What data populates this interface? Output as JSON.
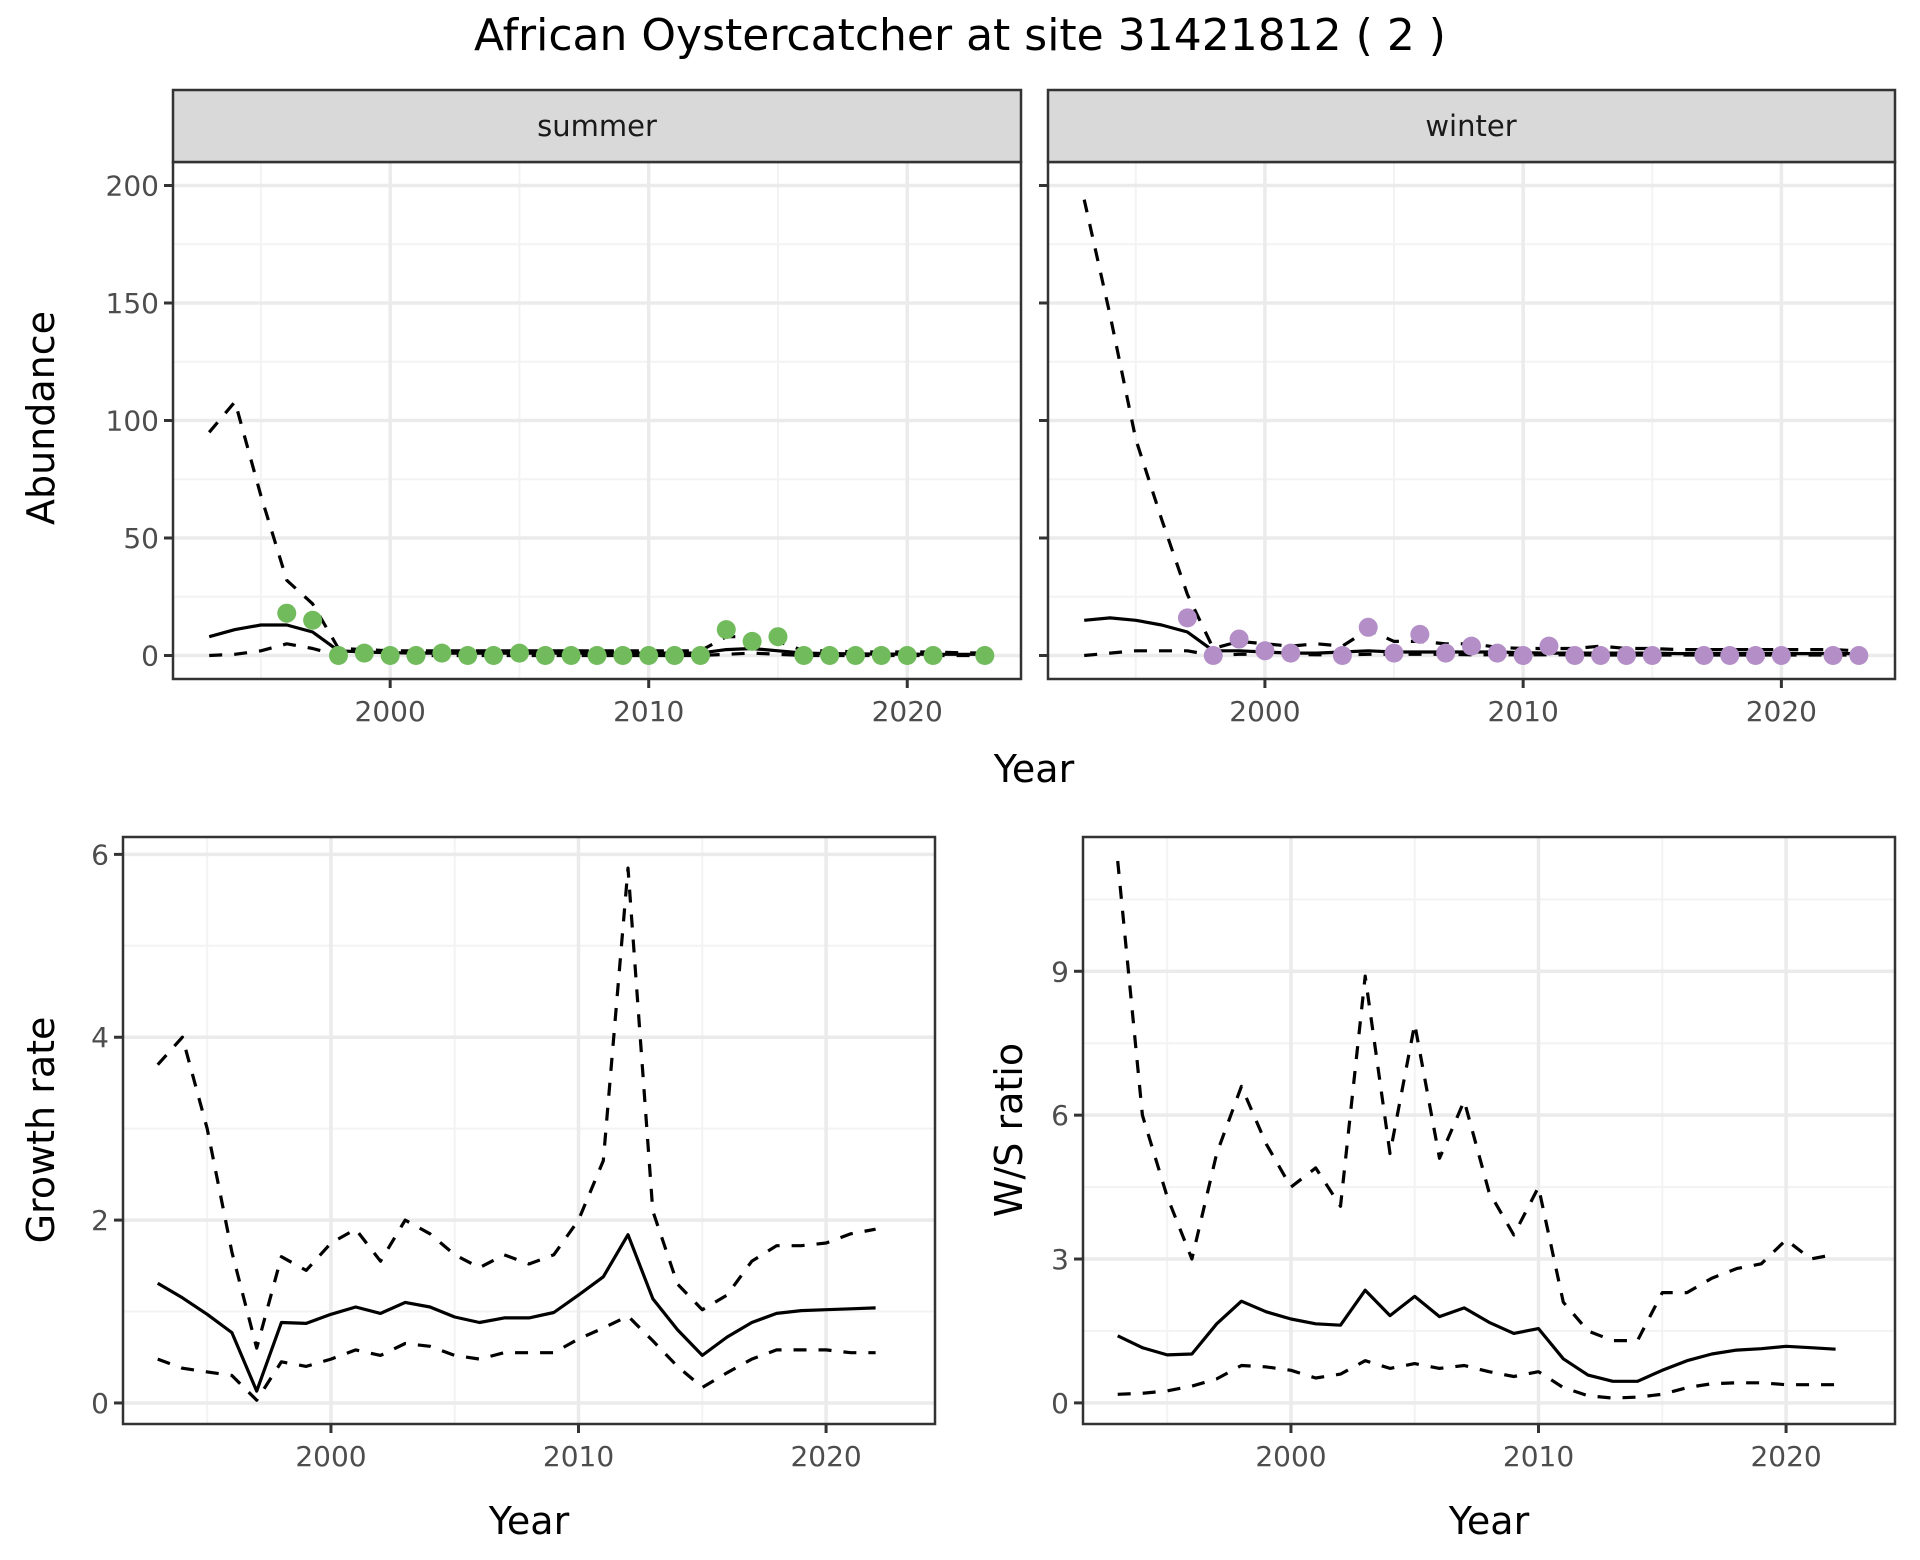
{
  "chart_data": [
    {
      "type": "line",
      "panel": "summer",
      "strip_label": "summer",
      "xlabel": "Year",
      "ylabel": "Abundance",
      "xlim": [
        1991.6,
        2024.4
      ],
      "ylim": [
        -10,
        210
      ],
      "xticks": [
        2000,
        2010,
        2020
      ],
      "yticks": [
        0,
        50,
        100,
        150,
        200
      ],
      "grid": true,
      "points_color": "#71bb5c",
      "x": [
        1993,
        1994,
        1995,
        1996,
        1997,
        1998,
        1999,
        2000,
        2001,
        2002,
        2003,
        2004,
        2005,
        2006,
        2007,
        2008,
        2009,
        2010,
        2011,
        2012,
        2013,
        2014,
        2015,
        2016,
        2017,
        2018,
        2019,
        2020,
        2021,
        2022,
        2023
      ],
      "series": [
        {
          "name": "mean",
          "style": "solid",
          "values": [
            8,
            11,
            13,
            13,
            10,
            2,
            1.5,
            1.2,
            1,
            1,
            1,
            1,
            1,
            1,
            1,
            1,
            1,
            1,
            1,
            1,
            2.5,
            3,
            2,
            1,
            0.8,
            0.7,
            0.6,
            0.6,
            0.5,
            0.5,
            0.5
          ]
        },
        {
          "name": "upper",
          "style": "dashed",
          "values": [
            95,
            108,
            68,
            32,
            22,
            3,
            2.5,
            2,
            2,
            2,
            2,
            2,
            2,
            2,
            2,
            2,
            2,
            2,
            2,
            2,
            8,
            8,
            6,
            2,
            2,
            1.5,
            1.5,
            1.5,
            1.5,
            1.2,
            1
          ]
        },
        {
          "name": "lower",
          "style": "dashed",
          "values": [
            0,
            0.5,
            2,
            5,
            3,
            0,
            0,
            0,
            0,
            0,
            0,
            0,
            0,
            0,
            0,
            0,
            0,
            0,
            0,
            0,
            0.5,
            1,
            0.5,
            0,
            0,
            0,
            0,
            0,
            0,
            0,
            0
          ]
        }
      ],
      "observed": {
        "x": [
          1996,
          1997,
          1998,
          1999,
          2000,
          2001,
          2002,
          2003,
          2004,
          2005,
          2006,
          2007,
          2008,
          2009,
          2010,
          2011,
          2012,
          2013,
          2014,
          2015,
          2016,
          2017,
          2018,
          2019,
          2020,
          2021,
          2023
        ],
        "y": [
          18,
          15,
          0,
          1,
          0,
          0,
          1,
          0,
          0,
          1,
          0,
          0,
          0,
          0,
          0,
          0,
          0,
          11,
          6,
          8,
          0,
          0,
          0,
          0,
          0,
          0,
          0
        ]
      }
    },
    {
      "type": "line",
      "panel": "winter",
      "strip_label": "winter",
      "xlabel": "Year",
      "ylabel": "Abundance",
      "xlim": [
        1991.6,
        2024.4
      ],
      "ylim": [
        -10,
        210
      ],
      "xticks": [
        2000,
        2010,
        2020
      ],
      "yticks": [
        0,
        50,
        100,
        150,
        200
      ],
      "grid": true,
      "points_color": "#b48fc7",
      "x": [
        1993,
        1994,
        1995,
        1996,
        1997,
        1998,
        1999,
        2000,
        2001,
        2002,
        2003,
        2004,
        2005,
        2006,
        2007,
        2008,
        2009,
        2010,
        2011,
        2012,
        2013,
        2014,
        2015,
        2016,
        2017,
        2018,
        2019,
        2020,
        2021,
        2022,
        2023
      ],
      "series": [
        {
          "name": "mean",
          "style": "solid",
          "values": [
            15,
            16,
            15,
            13,
            10,
            2,
            2,
            1.5,
            1,
            1,
            1.5,
            2,
            1.5,
            1.5,
            1.5,
            1.5,
            1.5,
            1.2,
            1,
            1,
            1,
            1,
            1,
            0.8,
            0.8,
            0.8,
            0.8,
            0.8,
            0.8,
            0.8,
            0.8
          ]
        },
        {
          "name": "upper",
          "style": "dashed",
          "values": [
            194,
            145,
            92,
            58,
            26,
            3,
            6,
            5,
            4,
            5,
            4,
            11,
            6,
            6,
            5,
            5,
            3.5,
            3,
            3,
            3,
            4,
            3,
            3,
            2.5,
            2.5,
            2.5,
            2.5,
            2.5,
            2.5,
            2.5,
            2
          ]
        },
        {
          "name": "lower",
          "style": "dashed",
          "values": [
            0,
            1,
            2,
            2,
            2,
            0,
            0.5,
            0.5,
            0.5,
            0.3,
            0.3,
            0.5,
            0.5,
            0.5,
            0.5,
            0.3,
            0.3,
            0.3,
            0.3,
            0.3,
            0.2,
            0.2,
            0.2,
            0.2,
            0.2,
            0.2,
            0.2,
            0.2,
            0.2,
            0.2,
            0.2
          ]
        }
      ],
      "observed": {
        "x": [
          1997,
          1998,
          1999,
          2000,
          2001,
          2003,
          2004,
          2005,
          2006,
          2007,
          2008,
          2009,
          2010,
          2011,
          2012,
          2013,
          2014,
          2015,
          2017,
          2018,
          2019,
          2020,
          2022,
          2023
        ],
        "y": [
          16,
          0,
          7,
          2,
          1,
          0,
          12,
          1,
          9,
          1,
          4,
          1,
          0,
          4,
          0,
          0,
          0,
          0,
          0,
          0,
          0,
          0,
          0,
          0
        ]
      }
    },
    {
      "type": "line",
      "panel": "growth",
      "xlabel": "Year",
      "ylabel": "Growth rate",
      "xlim": [
        1991.6,
        2024.4
      ],
      "ylim": [
        -0.23,
        6.19
      ],
      "xticks": [
        2000,
        2010,
        2020
      ],
      "yticks": [
        0,
        2,
        4,
        6
      ],
      "grid": true,
      "x": [
        1993,
        1994,
        1995,
        1996,
        1997,
        1998,
        1999,
        2000,
        2001,
        2002,
        2003,
        2004,
        2005,
        2006,
        2007,
        2008,
        2009,
        2010,
        2011,
        2012,
        2013,
        2014,
        2015,
        2016,
        2017,
        2018,
        2019,
        2020,
        2021,
        2022
      ],
      "series": [
        {
          "name": "mean",
          "style": "solid",
          "values": [
            1.31,
            1.15,
            0.97,
            0.77,
            0.13,
            0.88,
            0.87,
            0.97,
            1.05,
            0.98,
            1.1,
            1.05,
            0.94,
            0.88,
            0.93,
            0.93,
            0.99,
            1.18,
            1.38,
            1.84,
            1.14,
            0.8,
            0.52,
            0.72,
            0.88,
            0.98,
            1.01,
            1.02,
            1.03,
            1.04
          ]
        },
        {
          "name": "upper",
          "style": "dashed",
          "values": [
            3.7,
            4.0,
            3.0,
            1.65,
            0.6,
            1.6,
            1.45,
            1.75,
            1.9,
            1.55,
            2.0,
            1.85,
            1.62,
            1.48,
            1.62,
            1.52,
            1.62,
            2.0,
            2.65,
            5.85,
            2.1,
            1.3,
            1.02,
            1.18,
            1.55,
            1.72,
            1.72,
            1.75,
            1.85,
            1.9
          ]
        },
        {
          "name": "lower",
          "style": "dashed",
          "values": [
            0.48,
            0.38,
            0.34,
            0.3,
            0.03,
            0.45,
            0.4,
            0.48,
            0.58,
            0.52,
            0.65,
            0.62,
            0.52,
            0.48,
            0.55,
            0.55,
            0.55,
            0.7,
            0.82,
            0.95,
            0.68,
            0.4,
            0.17,
            0.33,
            0.48,
            0.58,
            0.58,
            0.58,
            0.55,
            0.55
          ]
        }
      ]
    },
    {
      "type": "line",
      "panel": "ws_ratio",
      "xlabel": "Year",
      "ylabel": "W/S ratio",
      "xlim": [
        1991.6,
        2024.4
      ],
      "ylim": [
        -0.44,
        11.8
      ],
      "xticks": [
        2000,
        2010,
        2020
      ],
      "yticks": [
        0,
        3,
        6,
        9
      ],
      "grid": true,
      "x": [
        1993,
        1994,
        1995,
        1996,
        1997,
        1998,
        1999,
        2000,
        2001,
        2002,
        2003,
        2004,
        2005,
        2006,
        2007,
        2008,
        2009,
        2010,
        2011,
        2012,
        2013,
        2014,
        2015,
        2016,
        2017,
        2018,
        2019,
        2020,
        2021,
        2022
      ],
      "series": [
        {
          "name": "mean",
          "style": "solid",
          "values": [
            1.4,
            1.15,
            1.0,
            1.02,
            1.65,
            2.12,
            1.9,
            1.75,
            1.65,
            1.62,
            2.35,
            1.82,
            2.22,
            1.8,
            1.98,
            1.68,
            1.45,
            1.55,
            0.92,
            0.58,
            0.45,
            0.45,
            0.68,
            0.88,
            1.02,
            1.1,
            1.13,
            1.18,
            1.15,
            1.12
          ]
        },
        {
          "name": "upper",
          "style": "dashed",
          "values": [
            11.3,
            6.0,
            4.3,
            3.0,
            5.2,
            6.6,
            5.4,
            4.5,
            4.9,
            4.1,
            8.9,
            5.2,
            7.9,
            5.1,
            6.3,
            4.4,
            3.5,
            4.5,
            2.1,
            1.5,
            1.3,
            1.3,
            2.3,
            2.3,
            2.6,
            2.8,
            2.9,
            3.4,
            3.0,
            3.1
          ]
        },
        {
          "name": "lower",
          "style": "dashed",
          "values": [
            0.18,
            0.2,
            0.25,
            0.35,
            0.5,
            0.78,
            0.75,
            0.68,
            0.52,
            0.6,
            0.88,
            0.72,
            0.82,
            0.72,
            0.78,
            0.65,
            0.55,
            0.65,
            0.32,
            0.15,
            0.1,
            0.12,
            0.18,
            0.32,
            0.4,
            0.42,
            0.42,
            0.38,
            0.38,
            0.38
          ]
        }
      ]
    }
  ],
  "title": "African Oystercatcher at site 31421812 ( 2 )",
  "labels": {
    "summer": "summer",
    "winter": "winter",
    "abundance": "Abundance",
    "year_top": "Year",
    "growth": "Growth rate",
    "year_bl": "Year",
    "ws": "W/S ratio",
    "year_br": "Year"
  },
  "colors": {
    "strip_bg": "#d9d9d9",
    "frame": "#333333",
    "grid_major": "#ebebeb",
    "grid_minor": "#f3f3f3",
    "line": "#000000",
    "summer_points": "#71bb5c",
    "winter_points": "#b48fc7"
  }
}
